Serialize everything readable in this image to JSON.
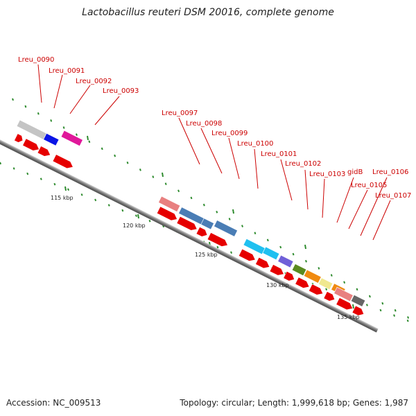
{
  "title": "Lactobacillus reuteri DSM 20016, complete genome",
  "footer": {
    "accession": "Accession: NC_009513",
    "summary": "Topology: circular; Length: 1,999,618 bp; Genes: 1,987"
  },
  "axis_ticks": [
    "115 kbp",
    "120 kbp",
    "125 kbp",
    "130 kbp",
    "135 kbp"
  ],
  "gene_labels": [
    "Lreu_0090",
    "Lreu_0091",
    "Lreu_0092",
    "Lreu_0093",
    "Lreu_0097",
    "Lreu_0098",
    "Lreu_0099",
    "Lreu_0100",
    "Lreu_0101",
    "Lreu_0102",
    "Lreu_0103",
    "gidB",
    "Lreu_0105",
    "Lreu_0106",
    "Lreu_0107"
  ],
  "colors": {
    "label": "#cc0000",
    "backbone": "#888888",
    "forward_feature": "#e60000",
    "tick": "#2e8b2e"
  }
}
